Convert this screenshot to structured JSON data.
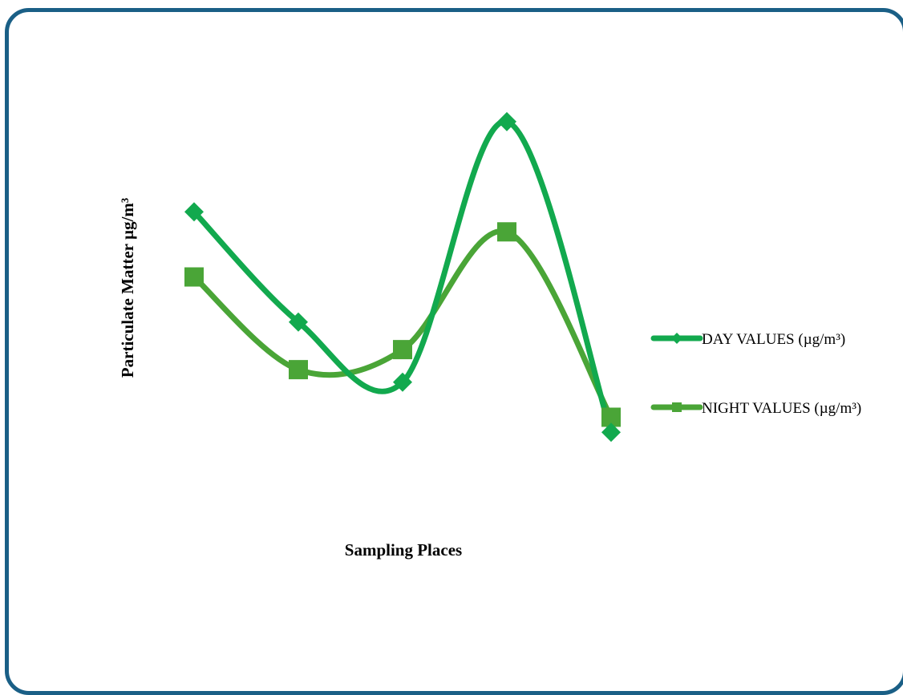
{
  "chart_data": {
    "type": "line",
    "smooth": true,
    "xlabel": "Sampling Places",
    "ylabel": "Particulate Matter µg/m³",
    "categories": [
      "",
      "",
      "",
      "",
      ""
    ],
    "ylim": [
      0,
      100
    ],
    "grid": false,
    "legend_position": "right",
    "series": [
      {
        "name": "DAY VALUES (µg/m³)",
        "marker": "diamond",
        "color": "#12a94e",
        "values": [
          71,
          49,
          37,
          89,
          27
        ]
      },
      {
        "name": "NIGHT VALUES (µg/m³)",
        "marker": "square",
        "color": "#4aa537",
        "values": [
          58,
          39.5,
          43.5,
          67,
          30
        ]
      }
    ]
  }
}
